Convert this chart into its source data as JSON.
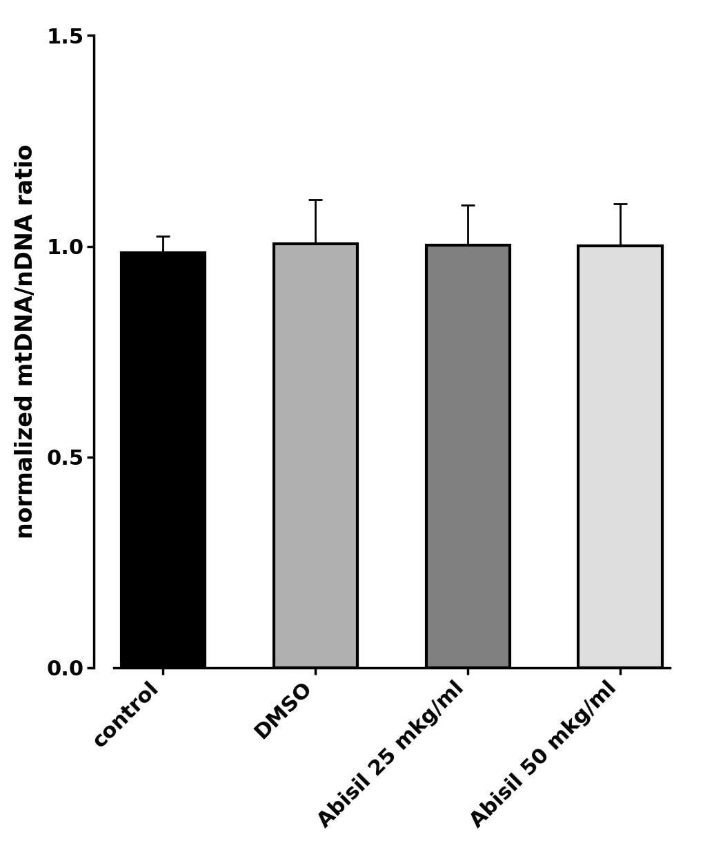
{
  "categories": [
    "control",
    "DMSO",
    "Abisil 25 mkg/ml",
    "Abisil 50 mkg/ml"
  ],
  "values": [
    0.985,
    1.005,
    1.003,
    1.001
  ],
  "errors": [
    0.038,
    0.105,
    0.095,
    0.1
  ],
  "bar_colors": [
    "#000000",
    "#b0b0b0",
    "#808080",
    "#dedede"
  ],
  "bar_edgecolors": [
    "#000000",
    "#000000",
    "#000000",
    "#000000"
  ],
  "bar_linewidth": 3.0,
  "ylabel": "normalized mtDNA/nDNA ratio",
  "ylim": [
    0.0,
    1.55
  ],
  "yticks": [
    0.0,
    0.5,
    1.0,
    1.5
  ],
  "ytick_labels": [
    "0.0",
    "0.5",
    "1.0",
    "1.5"
  ],
  "bar_width": 0.55,
  "capsize": 7,
  "error_linewidth": 2.0,
  "background_color": "#ffffff",
  "ylabel_fontsize": 24,
  "tick_fontsize": 22,
  "xlabel_fontsize": 22,
  "spine_linewidth": 2.5
}
